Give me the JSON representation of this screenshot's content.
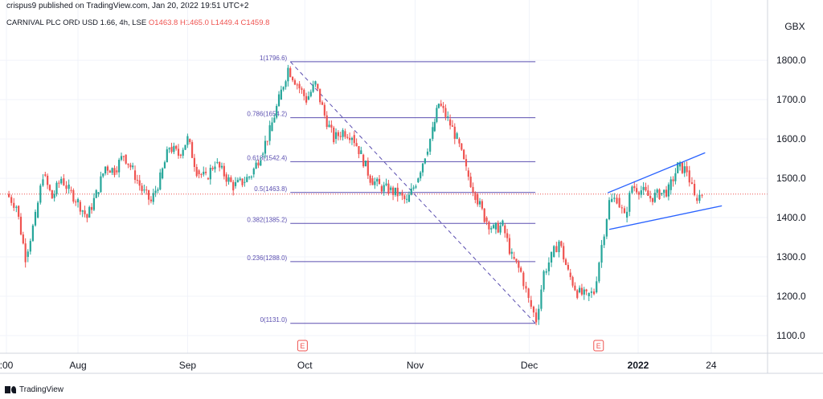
{
  "header": {
    "credit": "crispus9 published on TradingView.com, Jan 20, 2022 19:51 UTC+2",
    "symbol": "CARNIVAL PLC ORD USD 1.66, 4h, LSE",
    "ohlc": "O1463.8  H1465.0  L1449.4  C1459.8"
  },
  "footer": {
    "logo_text": "TradingView"
  },
  "colors": {
    "up": "#26a69a",
    "down": "#ef5350",
    "fib": "#5b4fb0",
    "channel": "#2962ff",
    "grid": "#f0f3fa",
    "earnings": "#ef5350"
  },
  "chart_data": {
    "type": "candlestick",
    "currency": "GBX",
    "ylim": [
      1055,
      1880
    ],
    "y_ticks": [
      "1100.0",
      "1200.0",
      "1300.0",
      "1400.0",
      "1500.0",
      "1600.0",
      "1700.0",
      "1800.0"
    ],
    "x_ticks": [
      {
        "label": ":00",
        "t": 0
      },
      {
        "label": "Aug",
        "t": 0.094
      },
      {
        "label": "Sep",
        "t": 0.238
      },
      {
        "label": "Oct",
        "t": 0.392
      },
      {
        "label": "Nov",
        "t": 0.537
      },
      {
        "label": "Dec",
        "t": 0.687
      },
      {
        "label": "2022",
        "t": 0.83,
        "bold": true
      },
      {
        "label": "24",
        "t": 0.926
      }
    ],
    "current_price": 1459.8,
    "fib": {
      "start": {
        "t": 0.373,
        "price": 1796.6
      },
      "end": {
        "t": 0.695,
        "price": 1131.0
      },
      "x_range": [
        0.373,
        0.695
      ],
      "levels": [
        {
          "label": "1(1796.6)",
          "price": 1796.6
        },
        {
          "label": "0.786(1654.2)",
          "price": 1654.2
        },
        {
          "label": "0.618(1542.4)",
          "price": 1542.4
        },
        {
          "label": "0.5(1463.8)",
          "price": 1463.8
        },
        {
          "label": "0.382(1385.2)",
          "price": 1385.2
        },
        {
          "label": "0.236(1288.0)",
          "price": 1288.0
        },
        {
          "label": "0(1131.0)",
          "price": 1131.0
        }
      ]
    },
    "channel": [
      {
        "from": {
          "t": 0.79,
          "price": 1463
        },
        "to": {
          "t": 0.918,
          "price": 1565
        }
      },
      {
        "from": {
          "t": 0.792,
          "price": 1370
        },
        "to": {
          "t": 0.94,
          "price": 1430
        }
      }
    ],
    "earnings_markers": [
      {
        "label": "E",
        "t": 0.389
      },
      {
        "label": "E",
        "t": 0.778
      }
    ],
    "series": [
      {
        "t": 0.0,
        "close": 1460
      },
      {
        "t": 0.013,
        "close": 1430
      },
      {
        "t": 0.025,
        "close": 1300
      },
      {
        "t": 0.038,
        "close": 1400
      },
      {
        "t": 0.048,
        "close": 1510
      },
      {
        "t": 0.06,
        "close": 1450
      },
      {
        "t": 0.072,
        "close": 1500
      },
      {
        "t": 0.082,
        "close": 1470
      },
      {
        "t": 0.094,
        "close": 1440
      },
      {
        "t": 0.106,
        "close": 1400
      },
      {
        "t": 0.118,
        "close": 1460
      },
      {
        "t": 0.13,
        "close": 1530
      },
      {
        "t": 0.142,
        "close": 1520
      },
      {
        "t": 0.154,
        "close": 1560
      },
      {
        "t": 0.166,
        "close": 1520
      },
      {
        "t": 0.178,
        "close": 1470
      },
      {
        "t": 0.19,
        "close": 1440
      },
      {
        "t": 0.202,
        "close": 1500
      },
      {
        "t": 0.214,
        "close": 1580
      },
      {
        "t": 0.226,
        "close": 1560
      },
      {
        "t": 0.238,
        "close": 1600
      },
      {
        "t": 0.25,
        "close": 1520
      },
      {
        "t": 0.262,
        "close": 1500
      },
      {
        "t": 0.274,
        "close": 1540
      },
      {
        "t": 0.286,
        "close": 1510
      },
      {
        "t": 0.298,
        "close": 1480
      },
      {
        "t": 0.31,
        "close": 1490
      },
      {
        "t": 0.322,
        "close": 1510
      },
      {
        "t": 0.334,
        "close": 1560
      },
      {
        "t": 0.346,
        "close": 1620
      },
      {
        "t": 0.358,
        "close": 1700
      },
      {
        "t": 0.37,
        "close": 1780
      },
      {
        "t": 0.382,
        "close": 1740
      },
      {
        "t": 0.394,
        "close": 1700
      },
      {
        "t": 0.406,
        "close": 1740
      },
      {
        "t": 0.418,
        "close": 1660
      },
      {
        "t": 0.43,
        "close": 1600
      },
      {
        "t": 0.442,
        "close": 1620
      },
      {
        "t": 0.454,
        "close": 1610
      },
      {
        "t": 0.466,
        "close": 1560
      },
      {
        "t": 0.478,
        "close": 1500
      },
      {
        "t": 0.49,
        "close": 1480
      },
      {
        "t": 0.502,
        "close": 1470
      },
      {
        "t": 0.514,
        "close": 1460
      },
      {
        "t": 0.526,
        "close": 1440
      },
      {
        "t": 0.538,
        "close": 1490
      },
      {
        "t": 0.55,
        "close": 1560
      },
      {
        "t": 0.56,
        "close": 1620
      },
      {
        "t": 0.568,
        "close": 1690
      },
      {
        "t": 0.58,
        "close": 1650
      },
      {
        "t": 0.592,
        "close": 1600
      },
      {
        "t": 0.604,
        "close": 1520
      },
      {
        "t": 0.616,
        "close": 1460
      },
      {
        "t": 0.628,
        "close": 1400
      },
      {
        "t": 0.64,
        "close": 1370
      },
      {
        "t": 0.652,
        "close": 1380
      },
      {
        "t": 0.664,
        "close": 1300
      },
      {
        "t": 0.676,
        "close": 1260
      },
      {
        "t": 0.686,
        "close": 1190
      },
      {
        "t": 0.696,
        "close": 1140
      },
      {
        "t": 0.706,
        "close": 1260
      },
      {
        "t": 0.716,
        "close": 1300
      },
      {
        "t": 0.726,
        "close": 1340
      },
      {
        "t": 0.738,
        "close": 1260
      },
      {
        "t": 0.75,
        "close": 1210
      },
      {
        "t": 0.762,
        "close": 1200
      },
      {
        "t": 0.772,
        "close": 1210
      },
      {
        "t": 0.782,
        "close": 1330
      },
      {
        "t": 0.792,
        "close": 1440
      },
      {
        "t": 0.802,
        "close": 1450
      },
      {
        "t": 0.812,
        "close": 1400
      },
      {
        "t": 0.822,
        "close": 1480
      },
      {
        "t": 0.834,
        "close": 1470
      },
      {
        "t": 0.846,
        "close": 1450
      },
      {
        "t": 0.858,
        "close": 1460
      },
      {
        "t": 0.87,
        "close": 1470
      },
      {
        "t": 0.882,
        "close": 1530
      },
      {
        "t": 0.894,
        "close": 1520
      },
      {
        "t": 0.904,
        "close": 1450
      },
      {
        "t": 0.914,
        "close": 1459.8
      }
    ]
  }
}
